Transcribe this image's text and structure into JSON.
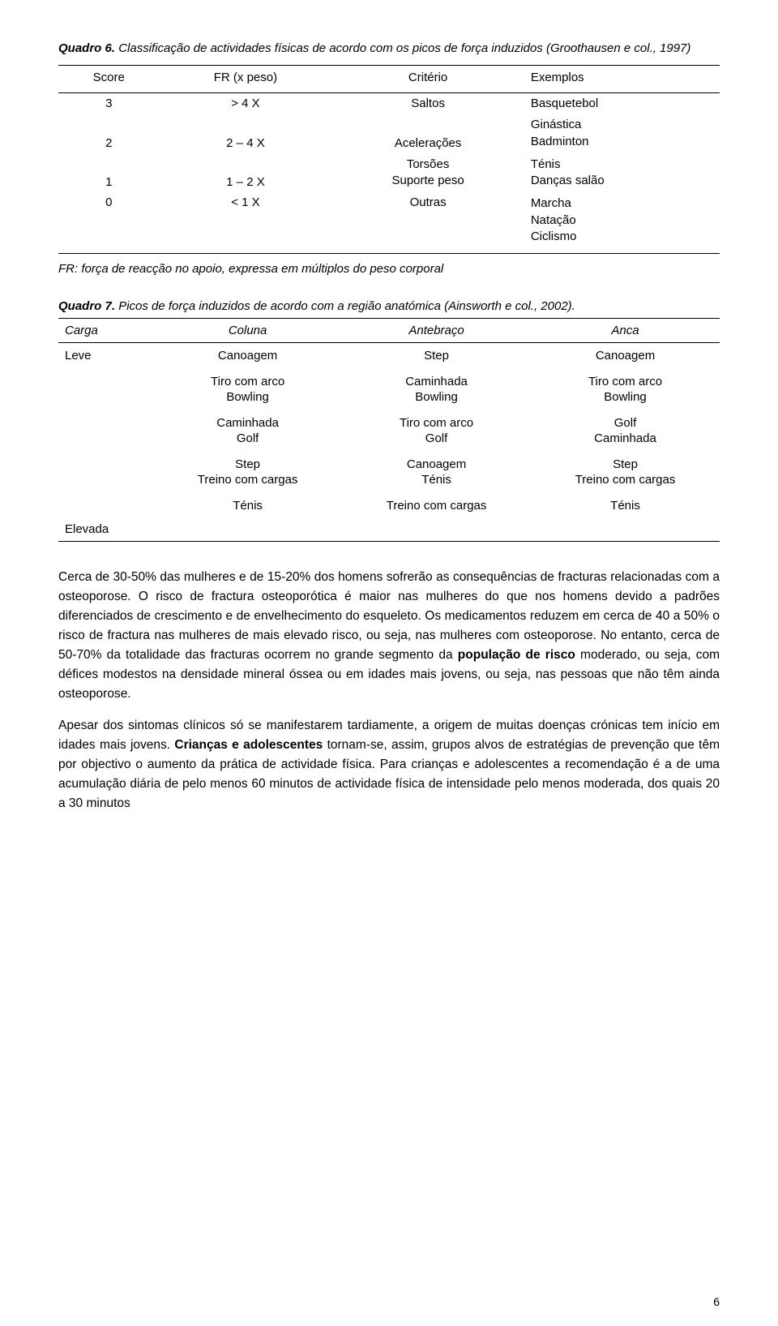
{
  "quadro6": {
    "label": "Quadro 6.",
    "title": "Classificação de actividades físicas de acordo com os picos de força induzidos (Groothausen e col., 1997)",
    "headers": {
      "c0": "Score",
      "c1": "FR (x peso)",
      "c2": "Critério",
      "c3": "Exemplos"
    },
    "rows": [
      {
        "score": "3",
        "fr": "> 4 X",
        "crit": "Saltos",
        "ex": "Basquetebol"
      },
      {
        "score": "2",
        "fr": "2 – 4 X",
        "crit": "Acelerações",
        "ex_a": "Ginástica",
        "ex_b": "Badminton"
      },
      {
        "score": "1",
        "fr": "1 – 2 X",
        "crit_a": "Torsões",
        "crit_b": "Suporte peso",
        "ex_a": "Ténis",
        "ex_b": "Danças salão"
      },
      {
        "score": "0",
        "fr": "< 1 X",
        "crit": "Outras",
        "ex_a": "Marcha",
        "ex_b": "Natação",
        "ex_c": "Ciclismo"
      }
    ],
    "footnote": "FR: força de reacção no apoio, expressa em múltiplos do peso corporal"
  },
  "quadro7": {
    "label": "Quadro 7.",
    "title": "Picos de força induzidos de acordo com a região anatómica (Ainsworth e col., 2002).",
    "headers": {
      "c0": "Carga",
      "c1": "Coluna",
      "c2": "Antebraço",
      "c3": "Anca"
    },
    "row0": {
      "carga": "Leve",
      "coluna": "Canoagem",
      "ante": "Step",
      "anca": "Canoagem"
    },
    "row1": {
      "coluna_a": "Tiro com arco",
      "coluna_b": "Bowling",
      "ante_a": "Caminhada",
      "ante_b": "Bowling",
      "anca_a": "Tiro com arco",
      "anca_b": "Bowling"
    },
    "row2": {
      "coluna_a": "Caminhada",
      "coluna_b": "Golf",
      "ante_a": "Tiro com arco",
      "ante_b": "Golf",
      "anca_a": "Golf",
      "anca_b": "Caminhada"
    },
    "row3": {
      "coluna_a": "Step",
      "coluna_b": "Treino com cargas",
      "ante_a": "Canoagem",
      "ante_b": "Ténis",
      "anca_a": "Step",
      "anca_b": "Treino com cargas"
    },
    "row4": {
      "coluna": "Ténis",
      "ante": "Treino com cargas",
      "anca": "Ténis"
    },
    "row5": {
      "carga": "Elevada"
    }
  },
  "para1": {
    "t1": "Cerca de 30-50% das mulheres e de 15-20% dos homens sofrerão as consequências de fracturas relacionadas com a osteoporose. O risco de fractura osteoporótica é maior nas mulheres do que nos homens devido a padrões diferenciados de crescimento e de envelhecimento do esqueleto. Os medicamentos reduzem em cerca de 40 a 50% o risco de fractura nas mulheres de mais elevado risco, ou seja, nas mulheres com osteoporose. No entanto, cerca de 50-70% da totalidade das fracturas ocorrem no grande segmento da ",
    "b1": "população de risco",
    "t2": " moderado, ou seja, com défices modestos na densidade mineral óssea ou em idades mais jovens, ou seja, nas pessoas que não têm ainda osteoporose."
  },
  "para2": {
    "t1": "Apesar dos sintomas clínicos só se manifestarem tardiamente, a origem de muitas doenças crónicas tem início em idades mais jovens. ",
    "b1": "Crianças e adolescentes",
    "t2": " tornam-se, assim, grupos alvos de estratégias de prevenção que têm por objectivo o aumento da prática de actividade física. Para crianças e adolescentes a recomendação é a de uma acumulação diária de pelo menos 60 minutos de actividade física de intensidade pelo menos moderada, dos quais 20 a 30 minutos"
  },
  "pageNumber": "6",
  "colors": {
    "bg": "#ffffff",
    "text": "#000000",
    "border": "#000000"
  }
}
